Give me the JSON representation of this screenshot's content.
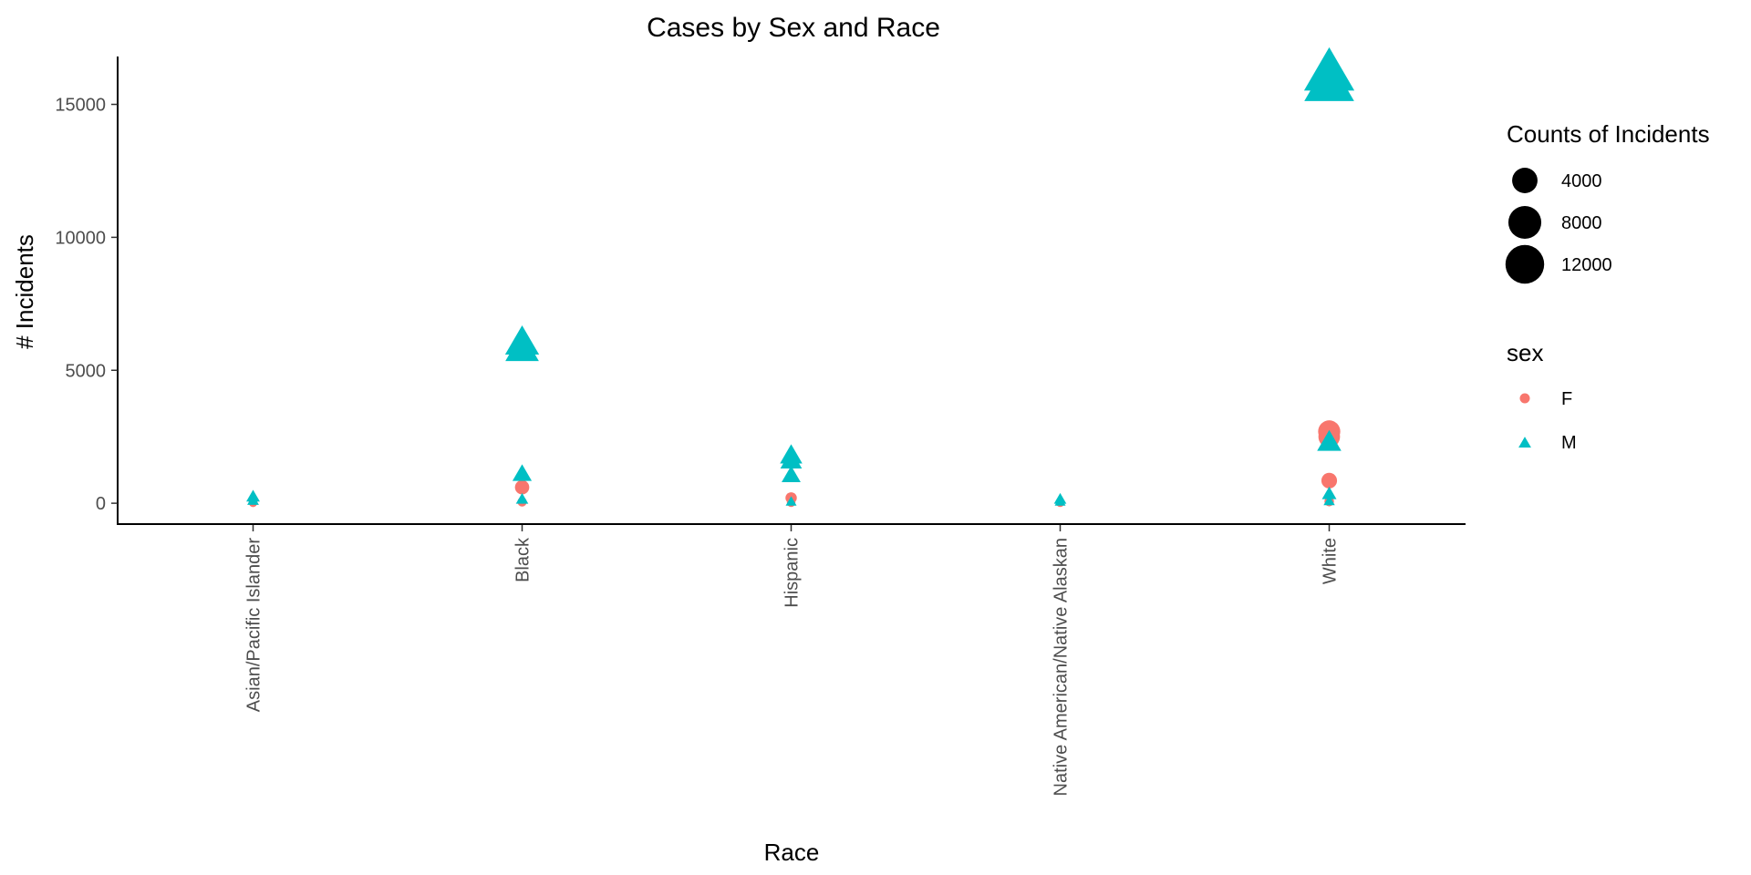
{
  "chart_data": {
    "type": "scatter",
    "title": "Cases by Sex and Race",
    "xlabel": "Race",
    "ylabel": "# Incidents",
    "categories": [
      "Asian/Pacific Islander",
      "Black",
      "Hispanic",
      "Native American/Native Alaskan",
      "White"
    ],
    "ylim": [
      -750,
      16800
    ],
    "yticks": [
      0,
      5000,
      10000,
      15000
    ],
    "grid": false,
    "size_legend": {
      "title": "Counts of Incidents",
      "entries": [
        {
          "label": "4000",
          "value": 4000
        },
        {
          "label": "8000",
          "value": 8000
        },
        {
          "label": "12000",
          "value": 12000
        }
      ]
    },
    "color_legend": {
      "title": "sex",
      "entries": [
        {
          "label": "F",
          "color": "#F8766D",
          "shape": "circle"
        },
        {
          "label": "M",
          "color": "#00BFC4",
          "shape": "triangle"
        }
      ]
    },
    "series": [
      {
        "name": "F",
        "color": "#F8766D",
        "shape": "circle",
        "points": [
          {
            "x": "Asian/Pacific Islander",
            "y": 30
          },
          {
            "x": "Asian/Pacific Islander",
            "y": 10
          },
          {
            "x": "Black",
            "y": 600
          },
          {
            "x": "Black",
            "y": 50
          },
          {
            "x": "Hispanic",
            "y": 200
          },
          {
            "x": "Hispanic",
            "y": 20
          },
          {
            "x": "Native American/Native Alaskan",
            "y": 20
          },
          {
            "x": "White",
            "y": 2700
          },
          {
            "x": "White",
            "y": 2500
          },
          {
            "x": "White",
            "y": 850
          },
          {
            "x": "White",
            "y": 60
          }
        ]
      },
      {
        "name": "M",
        "color": "#00BFC4",
        "shape": "triangle",
        "points": [
          {
            "x": "Asian/Pacific Islander",
            "y": 250
          },
          {
            "x": "Asian/Pacific Islander",
            "y": 100
          },
          {
            "x": "Black",
            "y": 6050
          },
          {
            "x": "Black",
            "y": 5800
          },
          {
            "x": "Black",
            "y": 1100
          },
          {
            "x": "Black",
            "y": 150
          },
          {
            "x": "Hispanic",
            "y": 1800
          },
          {
            "x": "Hispanic",
            "y": 1600
          },
          {
            "x": "Hispanic",
            "y": 1050
          },
          {
            "x": "Hispanic",
            "y": 60
          },
          {
            "x": "Native American/Native Alaskan",
            "y": 150
          },
          {
            "x": "Native American/Native Alaskan",
            "y": 60
          },
          {
            "x": "White",
            "y": 16200
          },
          {
            "x": "White",
            "y": 15800
          },
          {
            "x": "White",
            "y": 2300
          },
          {
            "x": "White",
            "y": 350
          },
          {
            "x": "White",
            "y": 80
          }
        ]
      }
    ]
  }
}
